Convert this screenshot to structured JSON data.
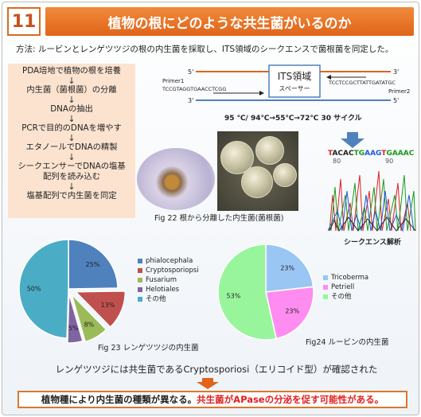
{
  "header": {
    "number": "11",
    "title": "植物の根にどのような共生菌がいるのか"
  },
  "method_text": "方法: ルービンとレンゲツツジの根の内生菌を採取し、ITS領域のシークエンスで菌根菌を同定した。",
  "steps": [
    "PDA培地で植物の根を培養",
    "内生菌（菌根菌）の分離",
    "DNAの抽出",
    "PCRで目的のDNAを増やす",
    "エタノールでDNAの精製",
    "シークエンサーでDNAの塩基配列を読み込む",
    "塩基配列で内生菌を同定"
  ],
  "step_arrow": "↓",
  "its": {
    "region_label": "ITS領域",
    "spacer_label": "スペーサー",
    "primer1": "Primer1",
    "primer1_seq": "TCCGTAGGTGAACCTCGG",
    "primer2": "Primer2",
    "primer2_seq": "TCCTCCGCTTATTGATATGC",
    "five_prime": "5'",
    "three_prime": "3'",
    "cycle_text": "95 ℃/ 94℃→55℃→72℃ 30 サイクル"
  },
  "sequence": {
    "bases": "TACACTGAAGTGAAAC",
    "pos1": "80",
    "pos2": "90",
    "label": "シークエンス解析"
  },
  "fig22_caption": "Fig 22 根から分離した内生菌(菌根菌)",
  "chart_data": [
    {
      "type": "pie",
      "title": "Fig 23 レンゲツツジの内生菌",
      "categories": [
        "phialocephala",
        "Cryptosporiopsi",
        "Fusarium",
        "Helotiales",
        "その他"
      ],
      "values": [
        25,
        13,
        8,
        5,
        50
      ],
      "colors": [
        "#4f81bd",
        "#c0504d",
        "#9bbb59",
        "#8064a2",
        "#4bacc6"
      ],
      "value_labels": [
        "25%",
        "13%",
        "8%",
        "5%",
        "50%"
      ]
    },
    {
      "type": "pie",
      "title": "Fig24 ルービンの内生菌",
      "categories": [
        "Tricoberma",
        "Petriell",
        "その他"
      ],
      "values": [
        23,
        23,
        53
      ],
      "colors": [
        "#99c6f2",
        "#ff8cf0",
        "#99f59b"
      ],
      "value_labels": [
        "23%",
        "23%",
        "53%"
      ]
    }
  ],
  "note_text": "レンゲツツジには共生菌であるCryptosporiosi（エリコイド型）が確認された",
  "conclusion": {
    "part1": "植物種により内生菌の種類が異なる。",
    "part2": "共生菌がAPaseの分泌を促す可能性がある。"
  }
}
